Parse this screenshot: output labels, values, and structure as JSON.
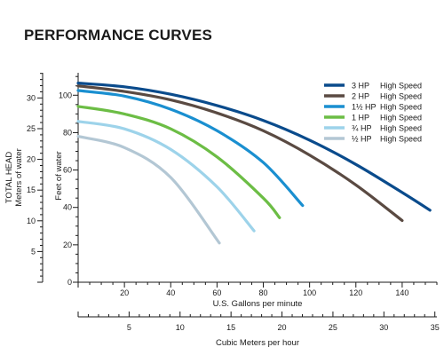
{
  "chart_data": {
    "type": "line",
    "title": "PERFORMANCE CURVES",
    "x_primary": {
      "label": "U.S. Gallons per minute",
      "ticks": [
        20,
        40,
        60,
        80,
        100,
        120,
        140
      ],
      "range": [
        0,
        155
      ]
    },
    "x_secondary": {
      "label": "Cubic Meters per hour",
      "ticks": [
        5,
        10,
        15,
        20,
        25,
        30,
        35
      ],
      "range": [
        0,
        35.2
      ]
    },
    "y_primary": {
      "label": "Feet of water",
      "ticks": [
        0,
        20,
        40,
        60,
        80,
        100
      ],
      "range": [
        0,
        112
      ]
    },
    "y_secondary": {
      "label_line1": "TOTAL HEAD",
      "label_line2": "Meters of water",
      "ticks": [
        5,
        10,
        15,
        20,
        25,
        30
      ],
      "range": [
        0,
        34.1
      ]
    },
    "series": [
      {
        "name": "3 HP",
        "speed": "High Speed",
        "color": "#0a4b8c",
        "x": [
          0,
          20,
          40,
          60,
          80,
          100,
          120,
          140,
          152
        ],
        "y": [
          106.5,
          104.5,
          100.5,
          94.5,
          86.5,
          76,
          63,
          48,
          38.5
        ]
      },
      {
        "name": "2 HP",
        "speed": "High Speed",
        "color": "#5a4a42",
        "x": [
          0,
          20,
          40,
          60,
          80,
          100,
          120,
          140
        ],
        "y": [
          105,
          102,
          97.5,
          90.5,
          81,
          68,
          52,
          33
        ]
      },
      {
        "name": "1½ HP",
        "speed": "High Speed",
        "color": "#1a8fd0",
        "x": [
          0,
          20,
          40,
          60,
          80,
          97
        ],
        "y": [
          102.5,
          99.5,
          92.5,
          81,
          64,
          41
        ]
      },
      {
        "name": "1 HP",
        "speed": "High Speed",
        "color": "#6cbd45",
        "x": [
          0,
          20,
          40,
          60,
          80,
          87
        ],
        "y": [
          94,
          90,
          82,
          67,
          45,
          34.5
        ]
      },
      {
        "name": "¾ HP",
        "speed": "High Speed",
        "color": "#9dd3ea",
        "x": [
          0,
          20,
          40,
          60,
          76
        ],
        "y": [
          86,
          82,
          71,
          51,
          27.5
        ]
      },
      {
        "name": "½ HP",
        "speed": "High Speed",
        "color": "#b3c7d4",
        "x": [
          0,
          20,
          40,
          61
        ],
        "y": [
          78,
          72,
          56,
          21
        ]
      }
    ]
  }
}
